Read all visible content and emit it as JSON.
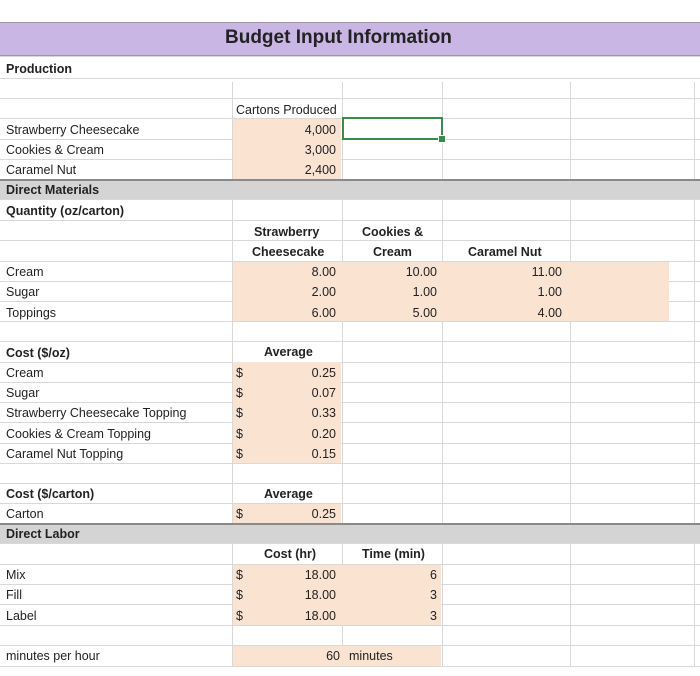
{
  "title": "Budget Input Information",
  "production": {
    "heading": "Production",
    "column_header": "Cartons Produced",
    "rows": [
      {
        "label": "Strawberry Cheesecake",
        "value": "4,000"
      },
      {
        "label": "Cookies & Cream",
        "value": "3,000"
      },
      {
        "label": "Caramel Nut",
        "value": "2,400"
      }
    ]
  },
  "direct_materials": {
    "heading": "Direct Materials",
    "quantity_heading": "Quantity (oz/carton)",
    "col_strawberry_l1": "Strawberry",
    "col_strawberry_l2": "Cheesecake",
    "col_cookies_l1": "Cookies &",
    "col_cookies_l2": "Cream",
    "col_caramel": "Caramel Nut",
    "quantity_rows": [
      {
        "label": "Cream",
        "strawberry": "8.00",
        "cookies": "10.00",
        "caramel": "11.00"
      },
      {
        "label": "Sugar",
        "strawberry": "2.00",
        "cookies": "1.00",
        "caramel": "1.00"
      },
      {
        "label": "Toppings",
        "strawberry": "6.00",
        "cookies": "5.00",
        "caramel": "4.00"
      }
    ],
    "cost_oz_heading": "Cost ($/oz)",
    "average_label": "Average",
    "currency": "$",
    "cost_oz_rows": [
      {
        "label": "Cream",
        "value": "0.25"
      },
      {
        "label": "Sugar",
        "value": "0.07"
      },
      {
        "label": "Strawberry Cheesecake Topping",
        "value": "0.33"
      },
      {
        "label": "Cookies & Cream Topping",
        "value": "0.20"
      },
      {
        "label": "Caramel Nut Topping",
        "value": "0.15"
      }
    ],
    "cost_carton_heading": "Cost ($/carton)",
    "carton_label": "Carton",
    "carton_value": "0.25"
  },
  "direct_labor": {
    "heading": "Direct Labor",
    "cost_hr_header": "Cost (hr)",
    "time_min_header": "Time (min)",
    "rows": [
      {
        "label": "Mix",
        "cost": "18.00",
        "time": "6"
      },
      {
        "label": "Fill",
        "cost": "18.00",
        "time": "3"
      },
      {
        "label": "Label",
        "cost": "18.00",
        "time": "3"
      }
    ],
    "minutes_label": "minutes per hour",
    "minutes_value": "60",
    "minutes_unit": "minutes"
  },
  "colors": {
    "title_band": "#c9b6e4",
    "input_fill": "#fbe3d2",
    "section_band": "#d4d4d4",
    "selection": "#3a8a4a"
  }
}
